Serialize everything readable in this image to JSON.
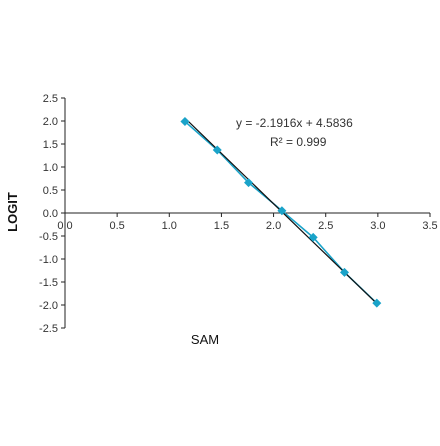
{
  "chart_data": {
    "type": "scatter",
    "title": "",
    "xlabel": "SAM",
    "ylabel": "LOGIT",
    "xlim": [
      0,
      3.5
    ],
    "ylim": [
      -2.5,
      2.5
    ],
    "x_ticks": [
      0,
      0.5,
      1.0,
      1.5,
      2.0,
      2.5,
      3.0,
      3.5
    ],
    "x_tick_labels": [
      "0.0",
      "0.5",
      "1.0",
      "1.5",
      "2.0",
      "2.5",
      "3.0",
      "3.5"
    ],
    "y_ticks": [
      2.5,
      2.0,
      1.5,
      1.0,
      0.5,
      0.0,
      -0.5,
      -1.0,
      -1.5,
      -2.0,
      -2.5
    ],
    "y_tick_labels": [
      "2.5",
      "2.0",
      "1.5",
      "1.0",
      "0.5",
      "0.0",
      "-0.5",
      "-1.0",
      "-1.5",
      "-2.0",
      "-2.5"
    ],
    "grid": false,
    "legend": "none",
    "series": [
      {
        "x": [
          1.15,
          1.46,
          1.76,
          2.08,
          2.38,
          2.68,
          2.99
        ],
        "y": [
          1.99,
          1.37,
          0.66,
          0.05,
          -0.53,
          -1.29,
          -1.96
        ],
        "marker": "diamond",
        "color": "#1aa3c9",
        "line": true
      }
    ],
    "trendline": {
      "type": "linear",
      "slope": -2.1916,
      "intercept": 4.5836,
      "color": "#111111"
    },
    "annotations": [
      "y = -2.1916x + 4.5836",
      "R² = 0.999"
    ]
  }
}
